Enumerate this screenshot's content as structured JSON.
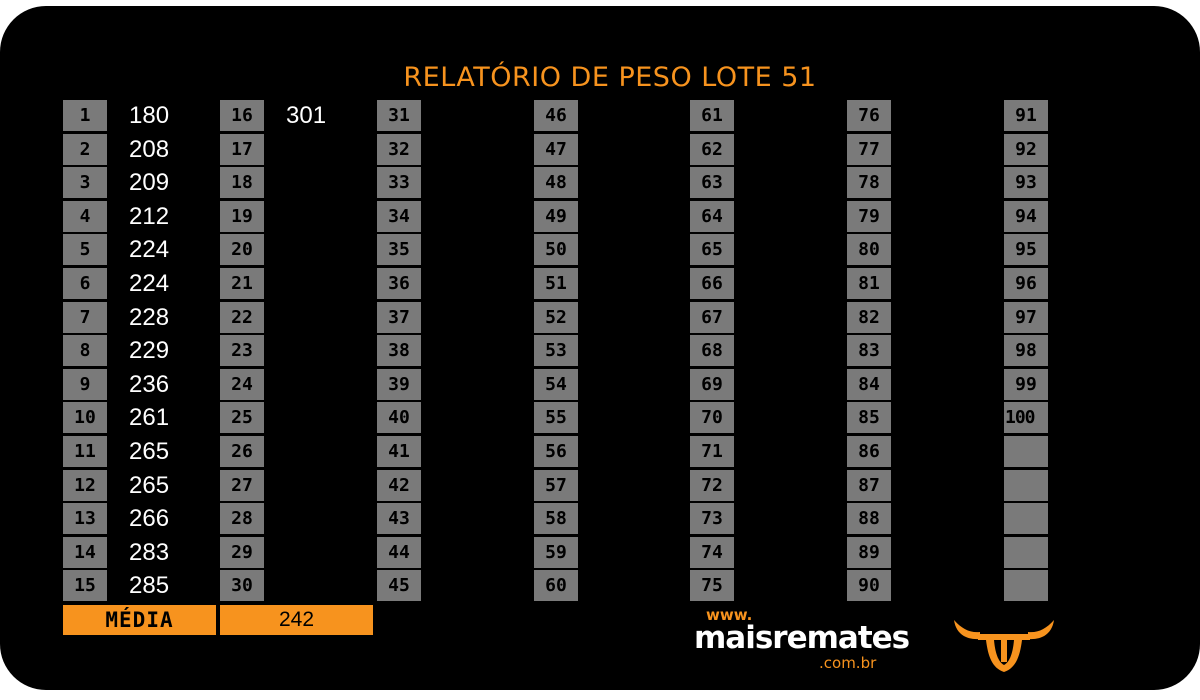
{
  "title": "RELATÓRIO DE PESO LOTE 51",
  "columns": [
    {
      "numbers": [
        "1",
        "2",
        "3",
        "4",
        "5",
        "6",
        "7",
        "8",
        "9",
        "10",
        "11",
        "12",
        "13",
        "14",
        "15"
      ],
      "values": [
        "180",
        "208",
        "209",
        "212",
        "224",
        "224",
        "228",
        "229",
        "236",
        "261",
        "265",
        "265",
        "266",
        "283",
        "285"
      ]
    },
    {
      "numbers": [
        "16",
        "17",
        "18",
        "19",
        "20",
        "21",
        "22",
        "23",
        "24",
        "25",
        "26",
        "27",
        "28",
        "29",
        "30"
      ],
      "values": [
        "301",
        "",
        "",
        "",
        "",
        "",
        "",
        "",
        "",
        "",
        "",
        "",
        "",
        "",
        ""
      ]
    },
    {
      "numbers": [
        "31",
        "32",
        "33",
        "34",
        "35",
        "36",
        "37",
        "38",
        "39",
        "40",
        "41",
        "42",
        "43",
        "44",
        "45"
      ],
      "values": []
    },
    {
      "numbers": [
        "46",
        "47",
        "48",
        "49",
        "50",
        "51",
        "52",
        "53",
        "54",
        "55",
        "56",
        "57",
        "58",
        "59",
        "60"
      ],
      "values": []
    },
    {
      "numbers": [
        "61",
        "62",
        "63",
        "64",
        "65",
        "66",
        "67",
        "68",
        "69",
        "70",
        "71",
        "72",
        "73",
        "74",
        "75"
      ],
      "values": []
    },
    {
      "numbers": [
        "76",
        "77",
        "78",
        "79",
        "80",
        "81",
        "82",
        "83",
        "84",
        "85",
        "86",
        "87",
        "88",
        "89",
        "90"
      ],
      "values": []
    },
    {
      "numbers": [
        "91",
        "92",
        "93",
        "94",
        "95",
        "96",
        "97",
        "98",
        "99",
        "100",
        "",
        "",
        "",
        "",
        ""
      ],
      "values": []
    }
  ],
  "media": {
    "label": "MÉDIA",
    "value": "242"
  },
  "logo": {
    "www": "www.",
    "brand": "maisremates",
    "domain": ".com.br",
    "icon": "bull-head-icon"
  },
  "colors": {
    "accent": "#f7931e",
    "cell": "#7a7a7a",
    "background": "#000000",
    "value_text": "#ffffff"
  }
}
